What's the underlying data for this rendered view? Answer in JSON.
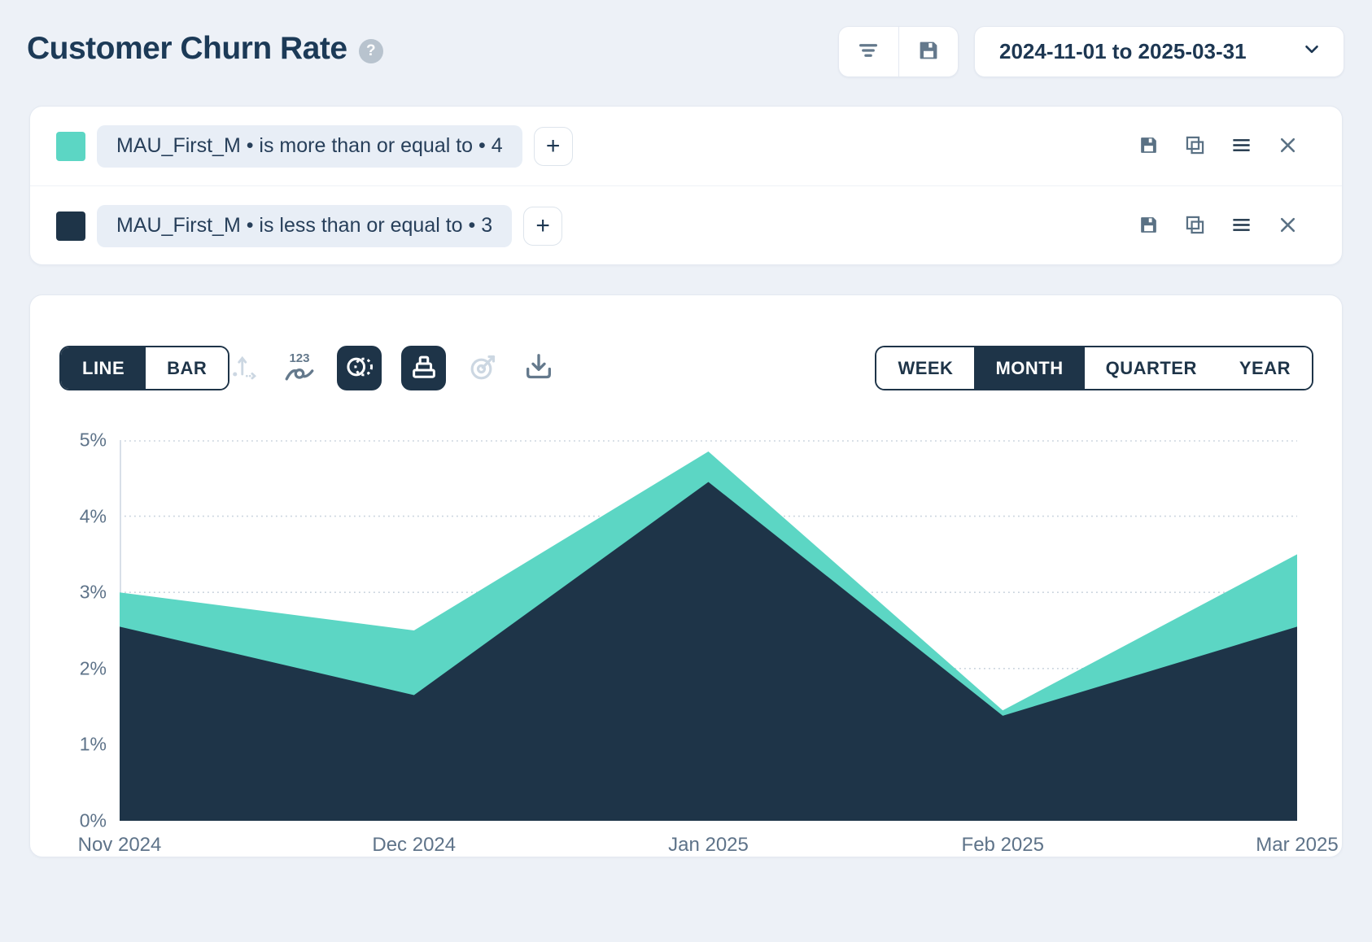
{
  "header": {
    "title": "Customer Churn Rate",
    "help_icon": "question-mark",
    "actions": {
      "filter_icon": "filter-lines",
      "save_icon": "save-disk"
    },
    "date_range": {
      "value": "2024-11-01 to 2025-03-31",
      "chevron_icon": "chevron-down"
    }
  },
  "filters": {
    "add_label": "+",
    "rows": [
      {
        "swatch_color": "#5cd6c4",
        "label": "MAU_First_M • is more than or equal to • 4"
      },
      {
        "swatch_color": "#1e3448",
        "label": "MAU_First_M • is less than or equal to • 3"
      }
    ],
    "row_icons": [
      "save-disk",
      "duplicate",
      "menu-lines",
      "close-x"
    ]
  },
  "chart_panel": {
    "chart_type_toggle": {
      "options": [
        "LINE",
        "BAR"
      ],
      "selected": "LINE"
    },
    "granularity_toggle": {
      "options": [
        "WEEK",
        "MONTH",
        "QUARTER",
        "YEAR"
      ],
      "selected": "MONTH"
    },
    "tools": [
      {
        "name": "axis-settings",
        "state": "disabled"
      },
      {
        "name": "show-values",
        "state": "normal"
      },
      {
        "name": "compare-circles",
        "state": "active"
      },
      {
        "name": "stacked-layers",
        "state": "active"
      },
      {
        "name": "goal-target",
        "state": "disabled"
      },
      {
        "name": "download",
        "state": "normal"
      }
    ]
  },
  "chart_data": {
    "type": "area",
    "x": [
      "Nov 2024",
      "Dec 2024",
      "Jan 2025",
      "Feb 2025",
      "Mar 2025"
    ],
    "series": [
      {
        "name": "MAU_First_M is more than or equal to 4",
        "color": "#5cd6c4",
        "values": [
          3.0,
          2.5,
          4.85,
          1.45,
          3.5
        ]
      },
      {
        "name": "MAU_First_M is less than or equal to 3",
        "color": "#1e3448",
        "values": [
          2.55,
          1.65,
          4.45,
          1.38,
          2.55
        ]
      }
    ],
    "yticks": [
      "0%",
      "1%",
      "2%",
      "3%",
      "4%",
      "5%"
    ],
    "ylim": [
      0,
      5
    ],
    "grid": "dotted-horizontal",
    "legend": "none",
    "grid_color": "#c8d2dd",
    "axis_line_color": "#d8dfe8"
  }
}
